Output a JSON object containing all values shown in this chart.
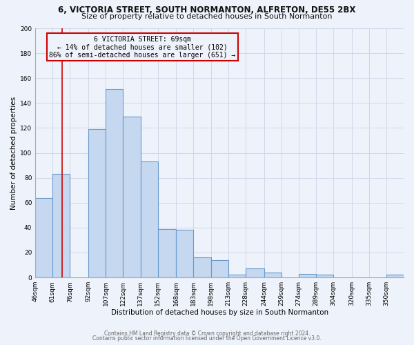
{
  "title1": "6, VICTORIA STREET, SOUTH NORMANTON, ALFRETON, DE55 2BX",
  "title2": "Size of property relative to detached houses in South Normanton",
  "xlabel": "Distribution of detached houses by size in South Normanton",
  "ylabel": "Number of detached properties",
  "bar_labels": [
    "46sqm",
    "61sqm",
    "76sqm",
    "92sqm",
    "107sqm",
    "122sqm",
    "137sqm",
    "152sqm",
    "168sqm",
    "183sqm",
    "198sqm",
    "213sqm",
    "228sqm",
    "244sqm",
    "259sqm",
    "274sqm",
    "289sqm",
    "304sqm",
    "320sqm",
    "335sqm",
    "350sqm"
  ],
  "label_values": [
    46,
    61,
    76,
    92,
    107,
    122,
    137,
    152,
    168,
    183,
    198,
    213,
    228,
    244,
    259,
    274,
    289,
    304,
    320,
    335,
    350
  ],
  "bar_values": [
    64,
    83,
    0,
    119,
    151,
    129,
    93,
    39,
    38,
    16,
    14,
    2,
    7,
    4,
    0,
    3,
    2,
    0,
    0,
    0,
    2
  ],
  "bar_color": "#c5d8f0",
  "bar_edge_color": "#6699cc",
  "grid_color": "#d0d8e8",
  "background_color": "#eef2fa",
  "vline_x": 69,
  "vline_color": "#cc0000",
  "annotation_title": "6 VICTORIA STREET: 69sqm",
  "annotation_line1": "← 14% of detached houses are smaller (102)",
  "annotation_line2": "86% of semi-detached houses are larger (651) →",
  "annotation_box_color": "#cc0000",
  "ylim": [
    0,
    200
  ],
  "yticks": [
    0,
    20,
    40,
    60,
    80,
    100,
    120,
    140,
    160,
    180,
    200
  ],
  "footer1": "Contains HM Land Registry data © Crown copyright and database right 2024.",
  "footer2": "Contains public sector information licensed under the Open Government Licence v3.0.",
  "title1_fontsize": 8.5,
  "title2_fontsize": 8.0,
  "xlabel_fontsize": 7.5,
  "ylabel_fontsize": 7.5,
  "tick_fontsize": 6.5,
  "annotation_fontsize": 7.0,
  "footer_fontsize": 5.5
}
